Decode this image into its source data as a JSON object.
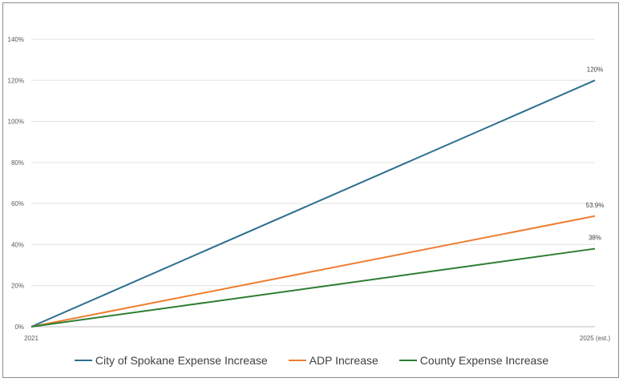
{
  "chart_data": {
    "type": "line",
    "x": [
      "2021",
      "2025 (est.)"
    ],
    "ylim": [
      0,
      140
    ],
    "yticks": [
      "0%",
      "20%",
      "40%",
      "60%",
      "80%",
      "100%",
      "120%",
      "140%"
    ],
    "ytick_values": [
      0,
      20,
      40,
      60,
      80,
      100,
      120,
      140
    ],
    "grid": true,
    "legend_position": "bottom",
    "series": [
      {
        "name": "City of Spokane Expense Increase",
        "values": [
          0,
          120
        ],
        "end_label": "120%",
        "color": "#2e6f8e"
      },
      {
        "name": "ADP Increase",
        "values": [
          0,
          53.9
        ],
        "end_label": "53.9%",
        "color": "#ed7d31"
      },
      {
        "name": "County Expense Increase",
        "values": [
          0,
          38
        ],
        "end_label": "38%",
        "color": "#2e7d32"
      }
    ]
  }
}
